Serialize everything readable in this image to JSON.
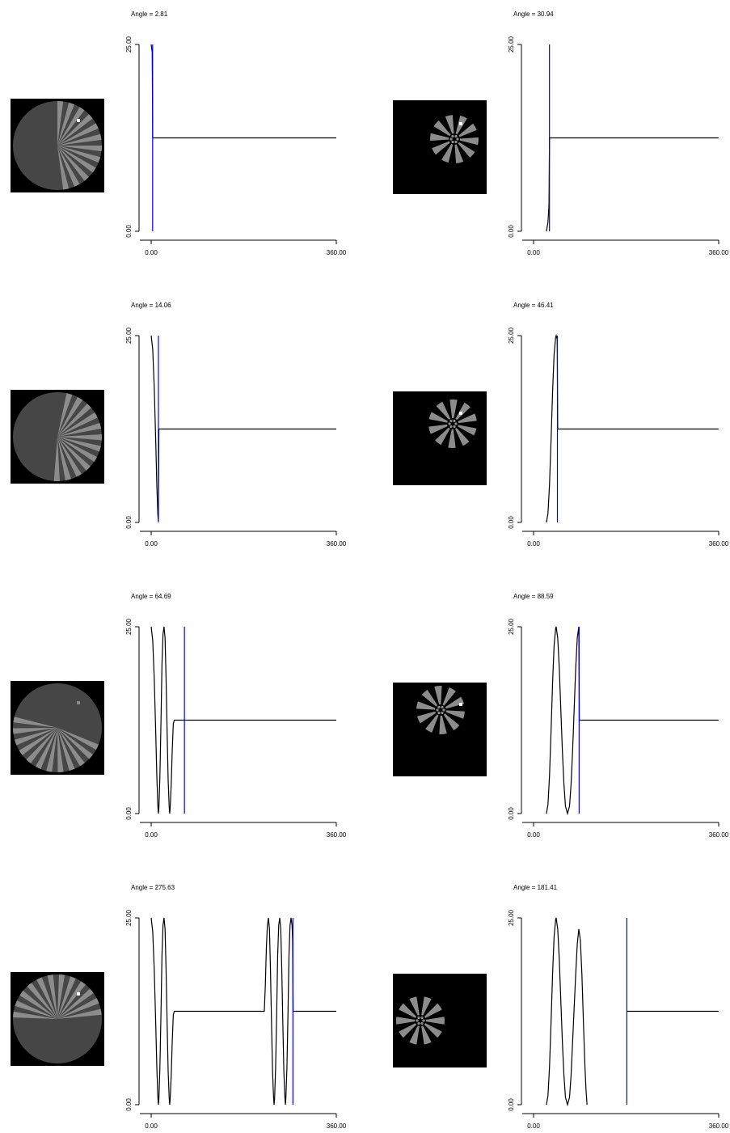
{
  "chart_data": [
    {
      "type": "line",
      "title": "Angle = 2.81",
      "xlim": [
        0,
        360
      ],
      "ylim": [
        0,
        25
      ],
      "xticks": [
        {
          "value": 0,
          "label": "0.00"
        },
        {
          "value": 360,
          "label": "360.00"
        }
      ],
      "yticks": [
        {
          "value": 0,
          "label": "0.00"
        },
        {
          "value": 25,
          "label": "25.00"
        }
      ],
      "series": [
        {
          "color": "#000000",
          "x": [
            0,
            2,
            3,
            360
          ],
          "values": [
            25,
            24,
            12.5,
            12.5
          ]
        }
      ],
      "vline": {
        "x": 2.81,
        "color": "#0000ff"
      }
    },
    {
      "type": "line",
      "title": "Angle = 30.94",
      "xlim": [
        0,
        360
      ],
      "ylim": [
        0,
        25
      ],
      "xticks": [
        {
          "value": 0,
          "label": "0.00"
        },
        {
          "value": 360,
          "label": "360.00"
        }
      ],
      "yticks": [
        {
          "value": 0,
          "label": "0.00"
        },
        {
          "value": 25,
          "label": "25.00"
        }
      ],
      "series": [
        {
          "color": "#000000",
          "x": [
            25,
            28,
            30,
            31,
            360
          ],
          "values": [
            0,
            1.2,
            3.5,
            12.5,
            12.5
          ]
        }
      ],
      "vline": {
        "x": 30.94,
        "color": "#0000ff"
      }
    },
    {
      "type": "line",
      "title": "Angle = 14.06",
      "xlim": [
        0,
        360
      ],
      "ylim": [
        0,
        25
      ],
      "xticks": [
        {
          "value": 0,
          "label": "0.00"
        },
        {
          "value": 360,
          "label": "360.00"
        }
      ],
      "yticks": [
        {
          "value": 0,
          "label": "0.00"
        },
        {
          "value": 25,
          "label": "25.00"
        }
      ],
      "series": [
        {
          "color": "#000000",
          "x": [
            0,
            3,
            6,
            9,
            11,
            13,
            14,
            15,
            360
          ],
          "values": [
            25,
            23.2,
            18,
            10.5,
            5,
            1,
            0.2,
            12.5,
            12.5
          ]
        }
      ],
      "vline": {
        "x": 14.06,
        "color": "#0000ff"
      }
    },
    {
      "type": "line",
      "title": "Angle = 46.41",
      "xlim": [
        0,
        360
      ],
      "ylim": [
        0,
        25
      ],
      "xticks": [
        {
          "value": 0,
          "label": "0.00"
        },
        {
          "value": 360,
          "label": "360.00"
        }
      ],
      "yticks": [
        {
          "value": 0,
          "label": "0.00"
        },
        {
          "value": 25,
          "label": "25.00"
        }
      ],
      "series": [
        {
          "color": "#000000",
          "x": [
            25,
            28,
            31,
            34,
            37,
            40,
            43,
            44,
            46,
            47,
            360
          ],
          "values": [
            0,
            1.2,
            5,
            11,
            17.5,
            22.5,
            24.8,
            25,
            24.5,
            12.5,
            12.5
          ]
        }
      ],
      "vline": {
        "x": 46.41,
        "color": "#0000ff"
      }
    },
    {
      "type": "line",
      "title": "Angle = 64.69",
      "xlim": [
        0,
        360
      ],
      "ylim": [
        0,
        25
      ],
      "xticks": [
        {
          "value": 0,
          "label": "0.00"
        },
        {
          "value": 360,
          "label": "360.00"
        }
      ],
      "yticks": [
        {
          "value": 0,
          "label": "0.00"
        },
        {
          "value": 25,
          "label": "25.00"
        }
      ],
      "series": [
        {
          "color": "#000000",
          "x": [
            0,
            3,
            6,
            9,
            11,
            13,
            14,
            15,
            17,
            19,
            21,
            23,
            25,
            27,
            29,
            31,
            33,
            35,
            36,
            37,
            39,
            41,
            43,
            45,
            360
          ],
          "values": [
            25,
            23.2,
            18,
            10.5,
            5,
            1,
            0,
            0.8,
            5,
            12,
            20,
            24,
            25,
            23.5,
            18,
            11,
            4.5,
            1,
            0,
            0.8,
            4,
            8.5,
            12,
            12.5,
            12.5
          ]
        }
      ],
      "vline": {
        "x": 64.69,
        "color": "#0000ff"
      }
    },
    {
      "type": "line",
      "title": "Angle = 88.59",
      "xlim": [
        0,
        360
      ],
      "ylim": [
        0,
        25
      ],
      "xticks": [
        {
          "value": 0,
          "label": "0.00"
        },
        {
          "value": 360,
          "label": "360.00"
        }
      ],
      "yticks": [
        {
          "value": 0,
          "label": "0.00"
        },
        {
          "value": 25,
          "label": "25.00"
        }
      ],
      "series": [
        {
          "color": "#000000",
          "x": [
            25,
            28,
            31,
            34,
            37,
            40,
            43,
            44,
            47,
            50,
            53,
            56,
            59,
            62,
            66,
            70,
            73,
            76,
            79,
            82,
            85,
            88,
            89,
            360
          ],
          "values": [
            0,
            1.2,
            5,
            11,
            17.5,
            22.5,
            24.8,
            25,
            23.5,
            19.5,
            14,
            8.5,
            4,
            1,
            0,
            1,
            4,
            8.5,
            14,
            19.5,
            23.5,
            25,
            12.5,
            12.5
          ]
        }
      ],
      "vline": {
        "x": 88.59,
        "color": "#0000ff"
      }
    },
    {
      "type": "line",
      "title": "Angle = 275.63",
      "xlim": [
        0,
        360
      ],
      "ylim": [
        0,
        25
      ],
      "xticks": [
        {
          "value": 0,
          "label": "0.00"
        },
        {
          "value": 360,
          "label": "360.00"
        }
      ],
      "yticks": [
        {
          "value": 0,
          "label": "0.00"
        },
        {
          "value": 25,
          "label": "25.00"
        }
      ],
      "series": [
        {
          "color": "#000000",
          "x": [
            0,
            3,
            6,
            9,
            11,
            13,
            14,
            15,
            17,
            19,
            21,
            23,
            25,
            27,
            29,
            31,
            33,
            35,
            36,
            37,
            39,
            41,
            43,
            45,
            220,
            222,
            224,
            226,
            228,
            230,
            232,
            234,
            236,
            238,
            239,
            240,
            242,
            244,
            246,
            248,
            250,
            252,
            254,
            256,
            258,
            260,
            261,
            262,
            264,
            266,
            268,
            270,
            272,
            274,
            275,
            276,
            360
          ],
          "values": [
            25,
            23.2,
            18,
            10.5,
            5,
            1,
            0,
            0.8,
            5,
            12,
            20,
            24,
            25,
            23.5,
            18,
            11,
            4.5,
            1,
            0,
            0.8,
            4,
            8.5,
            12,
            12.5,
            12.5,
            16,
            21,
            24,
            25,
            23.5,
            18,
            11,
            4.5,
            1,
            0,
            0.8,
            5,
            12,
            20,
            24,
            25,
            23.5,
            18,
            11,
            4.5,
            1,
            0,
            1,
            5,
            12,
            20,
            24,
            25,
            24,
            22,
            12.5,
            12.5
          ]
        }
      ],
      "vline": {
        "x": 275.63,
        "color": "#0000ff"
      }
    },
    {
      "type": "line",
      "title": "Angle = 181.41",
      "xlim": [
        0,
        360
      ],
      "ylim": [
        0,
        25
      ],
      "xticks": [
        {
          "value": 0,
          "label": "0.00"
        },
        {
          "value": 360,
          "label": "360.00"
        }
      ],
      "yticks": [
        {
          "value": 0,
          "label": "0.00"
        },
        {
          "value": 25,
          "label": "25.00"
        }
      ],
      "series": [
        {
          "color": "#000000",
          "x": [
            25,
            28,
            31,
            34,
            37,
            40,
            43,
            44,
            47,
            50,
            53,
            56,
            59,
            62,
            66,
            70,
            73,
            76,
            79,
            82,
            85,
            88,
            91,
            94,
            97,
            100,
            102,
            104,
            null,
            181.41,
            360
          ],
          "values": [
            0,
            1.2,
            5,
            11,
            17.5,
            22.5,
            24.8,
            25,
            23.5,
            19.5,
            14,
            8.5,
            4,
            1,
            0,
            1,
            4,
            8.5,
            13,
            17.5,
            21.5,
            23.5,
            22,
            17.5,
            11,
            5,
            2,
            0,
            null,
            12.5,
            12.5
          ]
        }
      ],
      "vline": {
        "x": 181.41,
        "color": "#0000ff"
      }
    }
  ]
}
